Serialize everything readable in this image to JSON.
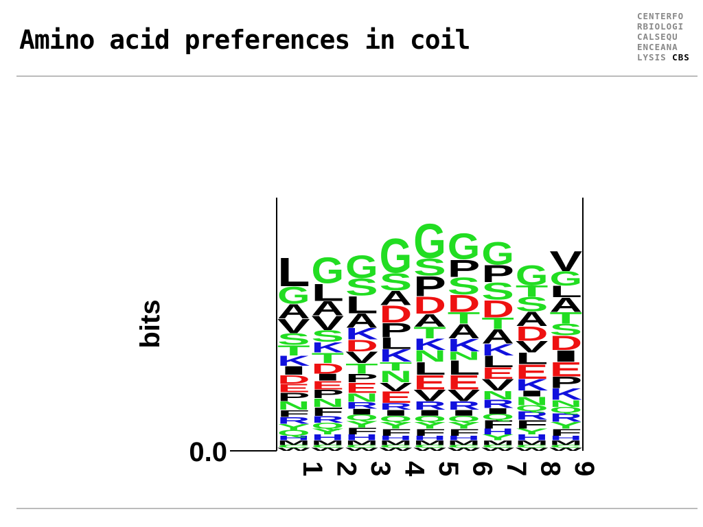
{
  "header": {
    "title": "Amino acid preferences in coil",
    "logo": [
      "CENTERFO",
      "RBIOLOGI",
      "CALSEQU",
      "ENCEANA",
      "LYSIS",
      "CBS"
    ]
  },
  "chart_data": {
    "type": "logo",
    "y_label": "bits",
    "ylim": [
      0,
      4.32
    ],
    "yticks": [
      {
        "value": 0,
        "label": "0.0"
      }
    ],
    "letter_colors": {
      "G": "#22dd22",
      "S": "#22dd22",
      "T": "#22dd22",
      "Y": "#22dd22",
      "C": "#22dd22",
      "Q": "#22dd22",
      "N": "#22dd22",
      "K": "#1111dd",
      "R": "#1111dd",
      "H": "#1111dd",
      "D": "#ee1111",
      "E": "#ee1111",
      "A": "#000000",
      "V": "#000000",
      "L": "#000000",
      "I": "#000000",
      "P": "#000000",
      "F": "#000000",
      "M": "#000000",
      "W": "#000000"
    },
    "series": [
      {
        "name": "1",
        "letters": [
          "W",
          "C",
          "M",
          "H",
          "Q",
          "Y",
          "R",
          "F",
          "N",
          "P",
          "E",
          "D",
          "I",
          "K",
          "T",
          "S",
          "V",
          "A",
          "G",
          "L"
        ],
        "values": [
          0.05,
          0.05,
          0.08,
          0.08,
          0.1,
          0.1,
          0.12,
          0.12,
          0.15,
          0.15,
          0.15,
          0.15,
          0.15,
          0.18,
          0.18,
          0.2,
          0.25,
          0.25,
          0.3,
          0.5
        ]
      },
      {
        "name": "2",
        "letters": [
          "W",
          "C",
          "M",
          "H",
          "Y",
          "Q",
          "R",
          "F",
          "N",
          "P",
          "E",
          "I",
          "D",
          "T",
          "K",
          "S",
          "V",
          "A",
          "L",
          "G"
        ],
        "values": [
          0.05,
          0.05,
          0.08,
          0.1,
          0.1,
          0.1,
          0.12,
          0.15,
          0.15,
          0.15,
          0.15,
          0.12,
          0.18,
          0.18,
          0.18,
          0.2,
          0.25,
          0.25,
          0.3,
          0.45
        ]
      },
      {
        "name": "3",
        "letters": [
          "W",
          "C",
          "M",
          "H",
          "F",
          "Y",
          "Q",
          "I",
          "R",
          "N",
          "E",
          "P",
          "T",
          "V",
          "D",
          "K",
          "A",
          "L",
          "S",
          "G"
        ],
        "values": [
          0.05,
          0.05,
          0.08,
          0.1,
          0.12,
          0.12,
          0.1,
          0.1,
          0.12,
          0.15,
          0.18,
          0.15,
          0.18,
          0.2,
          0.2,
          0.2,
          0.25,
          0.3,
          0.3,
          0.4
        ]
      },
      {
        "name": "4",
        "letters": [
          "W",
          "C",
          "M",
          "H",
          "F",
          "Y",
          "Q",
          "I",
          "R",
          "E",
          "V",
          "N",
          "T",
          "K",
          "L",
          "P",
          "D",
          "A",
          "S",
          "G"
        ],
        "values": [
          0.05,
          0.05,
          0.08,
          0.08,
          0.12,
          0.12,
          0.1,
          0.1,
          0.12,
          0.2,
          0.15,
          0.2,
          0.15,
          0.22,
          0.2,
          0.25,
          0.3,
          0.25,
          0.3,
          0.6
        ]
      },
      {
        "name": "5",
        "letters": [
          "W",
          "C",
          "M",
          "H",
          "F",
          "Y",
          "Q",
          "I",
          "R",
          "V",
          "E",
          "L",
          "N",
          "K",
          "T",
          "A",
          "D",
          "P",
          "S",
          "G"
        ],
        "values": [
          0.05,
          0.05,
          0.08,
          0.08,
          0.12,
          0.12,
          0.1,
          0.1,
          0.15,
          0.2,
          0.25,
          0.22,
          0.2,
          0.2,
          0.2,
          0.22,
          0.3,
          0.35,
          0.3,
          0.6
        ]
      },
      {
        "name": "6",
        "letters": [
          "W",
          "C",
          "M",
          "H",
          "F",
          "Y",
          "Q",
          "I",
          "R",
          "V",
          "E",
          "L",
          "N",
          "K",
          "A",
          "T",
          "D",
          "S",
          "P",
          "G"
        ],
        "values": [
          0.05,
          0.05,
          0.08,
          0.08,
          0.12,
          0.12,
          0.1,
          0.1,
          0.15,
          0.2,
          0.25,
          0.25,
          0.15,
          0.22,
          0.25,
          0.2,
          0.3,
          0.3,
          0.3,
          0.45
        ]
      },
      {
        "name": "7",
        "letters": [
          "W",
          "C",
          "M",
          "Y",
          "H",
          "F",
          "Q",
          "I",
          "R",
          "N",
          "V",
          "E",
          "L",
          "K",
          "A",
          "T",
          "D",
          "S",
          "P",
          "G"
        ],
        "values": [
          0.05,
          0.05,
          0.08,
          0.1,
          0.1,
          0.15,
          0.1,
          0.1,
          0.15,
          0.15,
          0.2,
          0.2,
          0.2,
          0.2,
          0.25,
          0.2,
          0.3,
          0.3,
          0.3,
          0.4
        ]
      },
      {
        "name": "8",
        "letters": [
          "W",
          "C",
          "M",
          "H",
          "Y",
          "F",
          "R",
          "Q",
          "N",
          "I",
          "K",
          "E",
          "L",
          "V",
          "D",
          "A",
          "S",
          "T",
          "G"
        ],
        "values": [
          0.05,
          0.05,
          0.08,
          0.1,
          0.1,
          0.15,
          0.15,
          0.1,
          0.15,
          0.1,
          0.2,
          0.25,
          0.2,
          0.2,
          0.25,
          0.25,
          0.25,
          0.2,
          0.35
        ]
      },
      {
        "name": "9",
        "letters": [
          "W",
          "C",
          "M",
          "H",
          "F",
          "Y",
          "R",
          "Q",
          "N",
          "K",
          "P",
          "E",
          "I",
          "D",
          "S",
          "T",
          "A",
          "L",
          "G",
          "V"
        ],
        "values": [
          0.05,
          0.05,
          0.08,
          0.08,
          0.12,
          0.12,
          0.15,
          0.1,
          0.12,
          0.2,
          0.2,
          0.25,
          0.2,
          0.25,
          0.2,
          0.2,
          0.25,
          0.2,
          0.25,
          0.35
        ]
      }
    ]
  }
}
